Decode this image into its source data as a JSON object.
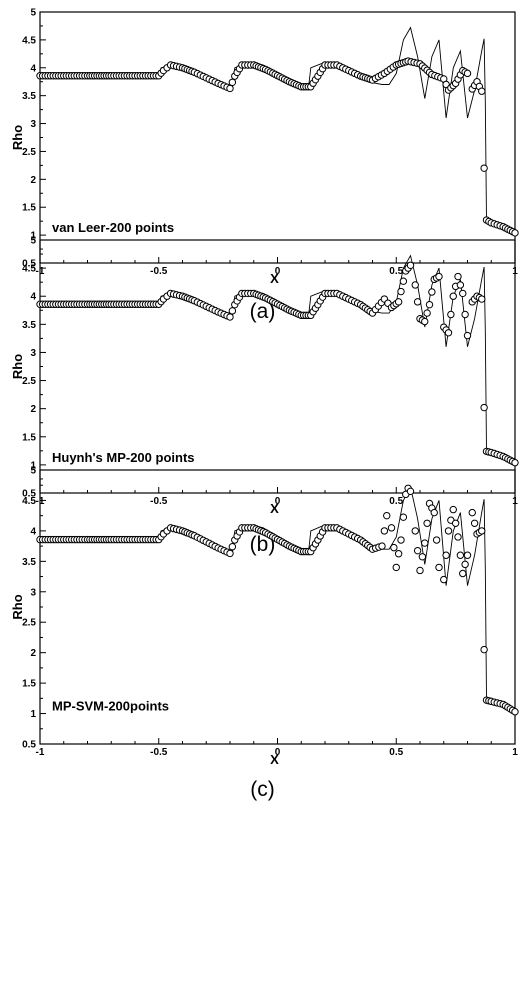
{
  "chart_data": [
    {
      "type": "scatter",
      "caption": "(a)",
      "annotation": "van Leer-200 points",
      "xlabel": "X",
      "ylabel": "Rho",
      "xlim": [
        -1,
        1
      ],
      "ylim": [
        0.5,
        5
      ],
      "xticks": [
        "-1",
        "-0.5",
        "0",
        "0.5",
        "1"
      ],
      "yticks": [
        "0.5",
        "1",
        "1.5",
        "2",
        "2.5",
        "3",
        "3.5",
        "4",
        "4.5",
        "5"
      ],
      "series": [
        {
          "style": "line",
          "x": [
            -1,
            -0.5,
            -0.49,
            -0.45,
            -0.4,
            -0.3,
            -0.22,
            -0.19,
            -0.18,
            -0.12,
            -0.06,
            0.0,
            0.05,
            0.1,
            0.13,
            0.14,
            0.2,
            0.26,
            0.32,
            0.38,
            0.44,
            0.47,
            0.5,
            0.53,
            0.56,
            0.59,
            0.62,
            0.65,
            0.68,
            0.71,
            0.74,
            0.77,
            0.8,
            0.83,
            0.86,
            0.87,
            0.875,
            0.88,
            0.9,
            0.95,
            1.0
          ],
          "y": [
            3.857,
            3.857,
            4.0,
            4.05,
            4.0,
            3.85,
            3.7,
            3.63,
            4.0,
            4.1,
            4.05,
            3.9,
            3.75,
            3.63,
            3.63,
            4.0,
            4.1,
            4.05,
            3.9,
            3.75,
            3.7,
            3.7,
            3.9,
            4.5,
            4.72,
            4.2,
            3.45,
            4.2,
            4.5,
            3.1,
            4.0,
            4.3,
            3.1,
            3.6,
            4.3,
            4.52,
            3.4,
            1.25,
            1.22,
            1.15,
            1.02
          ]
        },
        {
          "style": "circles",
          "x": [
            -1,
            -0.9,
            -0.8,
            -0.7,
            -0.6,
            -0.5,
            -0.48,
            -0.45,
            -0.4,
            -0.35,
            -0.3,
            -0.25,
            -0.2,
            -0.18,
            -0.15,
            -0.1,
            -0.05,
            0.0,
            0.05,
            0.1,
            0.14,
            0.17,
            0.2,
            0.25,
            0.3,
            0.35,
            0.4,
            0.45,
            0.5,
            0.55,
            0.6,
            0.65,
            0.7,
            0.72,
            0.75,
            0.78,
            0.8,
            0.82,
            0.84,
            0.86,
            0.87,
            0.88,
            0.9,
            0.95,
            1.0
          ],
          "y": [
            3.857,
            3.857,
            3.857,
            3.857,
            3.857,
            3.857,
            3.95,
            4.05,
            4.0,
            3.92,
            3.82,
            3.72,
            3.63,
            3.85,
            4.05,
            4.05,
            3.97,
            3.86,
            3.75,
            3.66,
            3.66,
            3.85,
            4.05,
            4.05,
            3.95,
            3.85,
            3.78,
            3.9,
            4.05,
            4.12,
            4.07,
            3.88,
            3.8,
            3.6,
            3.72,
            3.95,
            3.9,
            3.62,
            3.75,
            3.58,
            2.2,
            1.27,
            1.22,
            1.15,
            1.04
          ]
        }
      ]
    },
    {
      "type": "scatter",
      "caption": "(b)",
      "annotation": "Huynh's MP-200 points",
      "xlabel": "X",
      "ylabel": "Rho",
      "xlim": [
        -1,
        1
      ],
      "ylim": [
        0.5,
        5
      ],
      "xticks": [
        "-1",
        "-0.5",
        "0",
        "0.5",
        "1"
      ],
      "yticks": [
        "0.5",
        "1",
        "1.5",
        "2",
        "2.5",
        "3",
        "3.5",
        "4",
        "4.5",
        "5"
      ],
      "series": [
        {
          "style": "line",
          "x": [
            -1,
            -0.5,
            -0.49,
            -0.45,
            -0.4,
            -0.3,
            -0.22,
            -0.19,
            -0.18,
            -0.12,
            -0.06,
            0.0,
            0.05,
            0.1,
            0.13,
            0.14,
            0.2,
            0.26,
            0.32,
            0.38,
            0.44,
            0.47,
            0.5,
            0.53,
            0.56,
            0.59,
            0.62,
            0.65,
            0.68,
            0.71,
            0.74,
            0.77,
            0.8,
            0.83,
            0.86,
            0.87,
            0.875,
            0.88,
            0.9,
            0.95,
            1.0
          ],
          "y": [
            3.857,
            3.857,
            4.0,
            4.05,
            4.0,
            3.85,
            3.7,
            3.63,
            4.0,
            4.1,
            4.05,
            3.9,
            3.75,
            3.63,
            3.63,
            4.0,
            4.1,
            4.05,
            3.9,
            3.75,
            3.7,
            3.7,
            3.9,
            4.5,
            4.72,
            4.2,
            3.45,
            4.2,
            4.5,
            3.1,
            4.0,
            4.3,
            3.1,
            3.6,
            4.3,
            4.52,
            3.4,
            1.25,
            1.22,
            1.15,
            1.02
          ]
        },
        {
          "style": "circles",
          "x": [
            -1,
            -0.9,
            -0.8,
            -0.7,
            -0.6,
            -0.5,
            -0.48,
            -0.45,
            -0.4,
            -0.35,
            -0.3,
            -0.25,
            -0.2,
            -0.18,
            -0.15,
            -0.1,
            -0.05,
            0.0,
            0.05,
            0.1,
            0.14,
            0.17,
            0.2,
            0.25,
            0.3,
            0.35,
            0.4,
            0.45,
            0.48,
            0.51,
            0.54,
            0.56,
            0.58,
            0.6,
            0.62,
            0.64,
            0.66,
            0.68,
            0.7,
            0.72,
            0.74,
            0.76,
            0.78,
            0.8,
            0.82,
            0.84,
            0.86,
            0.87,
            0.88,
            0.9,
            0.95,
            1.0
          ],
          "y": [
            3.857,
            3.857,
            3.857,
            3.857,
            3.857,
            3.857,
            3.95,
            4.05,
            4.0,
            3.92,
            3.82,
            3.72,
            3.63,
            3.85,
            4.05,
            4.05,
            3.97,
            3.86,
            3.75,
            3.66,
            3.66,
            3.85,
            4.05,
            4.05,
            3.95,
            3.85,
            3.7,
            3.95,
            3.8,
            3.9,
            4.45,
            4.55,
            4.2,
            3.6,
            3.55,
            3.85,
            4.3,
            4.35,
            3.45,
            3.35,
            4.0,
            4.35,
            4.05,
            3.3,
            3.9,
            4.0,
            3.95,
            2.02,
            1.24,
            1.22,
            1.15,
            1.04
          ]
        }
      ]
    },
    {
      "type": "scatter",
      "caption": "(c)",
      "annotation": "MP-SVM-200points",
      "xlabel": "X",
      "ylabel": "Rho",
      "xlim": [
        -1,
        1
      ],
      "ylim": [
        0.5,
        5
      ],
      "xticks": [
        "-1",
        "-0.5",
        "0",
        "0.5",
        "1"
      ],
      "yticks": [
        "0.5",
        "1",
        "1.5",
        "2",
        "2.5",
        "3",
        "3.5",
        "4",
        "4.5",
        "5"
      ],
      "series": [
        {
          "style": "line",
          "x": [
            -1,
            -0.5,
            -0.49,
            -0.45,
            -0.4,
            -0.3,
            -0.22,
            -0.19,
            -0.18,
            -0.12,
            -0.06,
            0.0,
            0.05,
            0.1,
            0.13,
            0.14,
            0.2,
            0.26,
            0.32,
            0.38,
            0.44,
            0.47,
            0.5,
            0.53,
            0.56,
            0.59,
            0.62,
            0.65,
            0.68,
            0.71,
            0.74,
            0.77,
            0.8,
            0.83,
            0.86,
            0.87,
            0.875,
            0.88,
            0.9,
            0.95,
            1.0
          ],
          "y": [
            3.857,
            3.857,
            4.0,
            4.05,
            4.0,
            3.85,
            3.7,
            3.63,
            4.0,
            4.1,
            4.05,
            3.9,
            3.75,
            3.63,
            3.63,
            4.0,
            4.1,
            4.05,
            3.9,
            3.75,
            3.7,
            3.7,
            3.9,
            4.5,
            4.72,
            4.2,
            3.45,
            4.2,
            4.5,
            3.1,
            4.0,
            4.3,
            3.1,
            3.6,
            4.3,
            4.52,
            3.4,
            1.25,
            1.22,
            1.15,
            1.02
          ]
        },
        {
          "style": "circles",
          "x": [
            -1,
            -0.9,
            -0.8,
            -0.7,
            -0.6,
            -0.5,
            -0.48,
            -0.45,
            -0.4,
            -0.35,
            -0.3,
            -0.25,
            -0.2,
            -0.18,
            -0.15,
            -0.1,
            -0.05,
            0.0,
            0.05,
            0.1,
            0.14,
            0.17,
            0.2,
            0.25,
            0.3,
            0.35,
            0.4,
            0.44,
            0.46,
            0.48,
            0.5,
            0.52,
            0.54,
            0.55,
            0.56,
            0.58,
            0.6,
            0.62,
            0.64,
            0.66,
            0.68,
            0.7,
            0.72,
            0.74,
            0.76,
            0.78,
            0.8,
            0.82,
            0.84,
            0.86,
            0.87,
            0.88,
            0.9,
            0.95,
            1.0
          ],
          "y": [
            3.857,
            3.857,
            3.857,
            3.857,
            3.857,
            3.857,
            3.95,
            4.05,
            4.0,
            3.92,
            3.82,
            3.72,
            3.63,
            3.85,
            4.05,
            4.05,
            3.97,
            3.86,
            3.75,
            3.66,
            3.66,
            3.85,
            4.05,
            4.05,
            3.95,
            3.85,
            3.7,
            3.75,
            4.25,
            4.05,
            3.4,
            3.85,
            4.6,
            4.7,
            4.65,
            4.0,
            3.35,
            3.8,
            4.45,
            4.3,
            3.4,
            3.2,
            4.0,
            4.35,
            3.9,
            3.3,
            3.6,
            4.3,
            3.95,
            4.0,
            2.05,
            1.22,
            1.2,
            1.15,
            1.03
          ]
        }
      ]
    }
  ]
}
